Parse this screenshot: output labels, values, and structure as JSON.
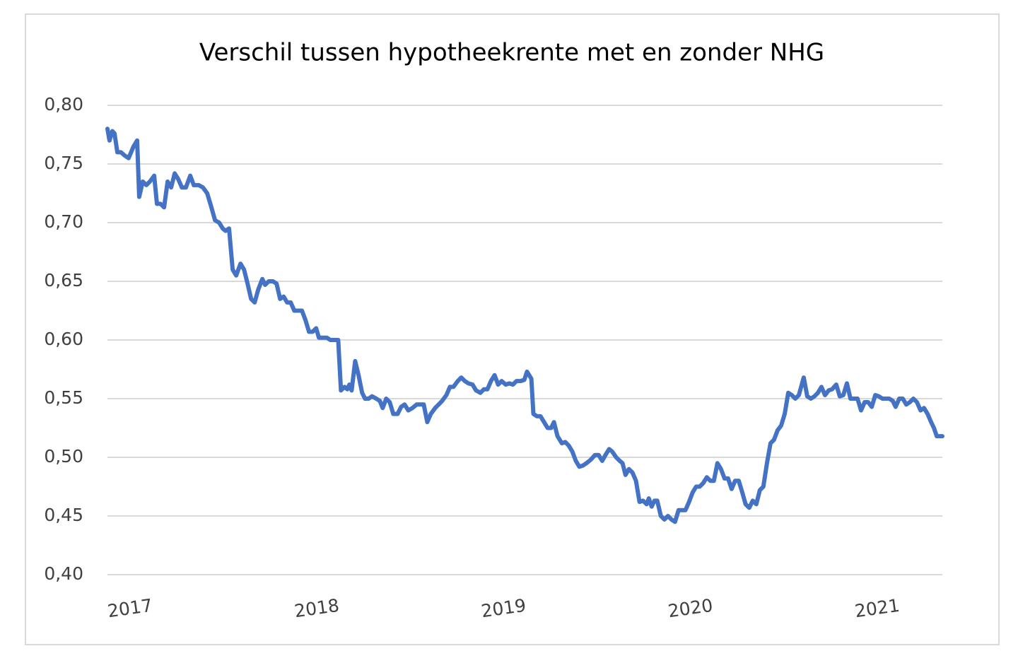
{
  "chart_data": {
    "type": "line",
    "title": "Verschil tussen hypotheekrente met en zonder NHG",
    "color": "#4472c4",
    "grid": true,
    "xlim": [
      2016.879,
      2021.348
    ],
    "xticks": [
      2017,
      2018,
      2019,
      2020,
      2021
    ],
    "ylim": [
      0.4,
      0.8
    ],
    "yticks": [
      {
        "value": 0.4,
        "label": "0,40"
      },
      {
        "value": 0.45,
        "label": "0,45"
      },
      {
        "value": 0.5,
        "label": "0,50"
      },
      {
        "value": 0.55,
        "label": "0,55"
      },
      {
        "value": 0.6,
        "label": "0,60"
      },
      {
        "value": 0.65,
        "label": "0,65"
      },
      {
        "value": 0.7,
        "label": "0,70"
      },
      {
        "value": 0.75,
        "label": "0,75"
      },
      {
        "value": 0.8,
        "label": "0,80"
      }
    ],
    "x": [
      2016.879,
      2016.89,
      2016.905,
      2016.917,
      2016.932,
      2016.951,
      2016.973,
      2016.992,
      2017.019,
      2017.038,
      2017.049,
      2017.068,
      2017.087,
      2017.106,
      2017.129,
      2017.144,
      2017.163,
      2017.182,
      2017.201,
      2017.22,
      2017.239,
      2017.258,
      2017.277,
      2017.299,
      2017.322,
      2017.341,
      2017.367,
      2017.39,
      2017.413,
      2017.432,
      2017.455,
      2017.477,
      2017.496,
      2017.511,
      2017.53,
      2017.549,
      2017.568,
      2017.591,
      2017.61,
      2017.629,
      2017.648,
      2017.667,
      2017.686,
      2017.708,
      2017.723,
      2017.742,
      2017.765,
      2017.784,
      2017.803,
      2017.822,
      2017.841,
      2017.86,
      2017.879,
      2017.902,
      2017.92,
      2017.939,
      2017.958,
      2017.977,
      2017.996,
      2018.011,
      2018.034,
      2018.053,
      2018.072,
      2018.095,
      2018.114,
      2018.129,
      2018.148,
      2018.163,
      2018.174,
      2018.186,
      2018.205,
      2018.223,
      2018.242,
      2018.258,
      2018.277,
      2018.295,
      2018.318,
      2018.337,
      2018.352,
      2018.371,
      2018.39,
      2018.409,
      2018.432,
      2018.451,
      2018.47,
      2018.489,
      2018.511,
      2018.534,
      2018.557,
      2018.572,
      2018.591,
      2018.61,
      2018.633,
      2018.652,
      2018.67,
      2018.693,
      2018.712,
      2018.731,
      2018.754,
      2018.773,
      2018.792,
      2018.811,
      2018.833,
      2018.852,
      2018.875,
      2018.894,
      2018.913,
      2018.932,
      2018.951,
      2018.97,
      2018.989,
      2019.011,
      2019.03,
      2019.049,
      2019.068,
      2019.091,
      2019.11,
      2019.125,
      2019.148,
      2019.159,
      2019.178,
      2019.197,
      2019.216,
      2019.235,
      2019.254,
      2019.269,
      2019.288,
      2019.311,
      2019.33,
      2019.348,
      2019.367,
      2019.386,
      2019.405,
      2019.424,
      2019.443,
      2019.466,
      2019.489,
      2019.508,
      2019.527,
      2019.545,
      2019.564,
      2019.58,
      2019.602,
      2019.621,
      2019.636,
      2019.652,
      2019.67,
      2019.689,
      2019.708,
      2019.727,
      2019.746,
      2019.765,
      2019.777,
      2019.792,
      2019.807,
      2019.822,
      2019.841,
      2019.86,
      2019.879,
      2019.898,
      2019.917,
      2019.936,
      2019.951,
      2019.973,
      2019.992,
      2020.011,
      2020.03,
      2020.049,
      2020.068,
      2020.087,
      2020.106,
      2020.125,
      2020.144,
      2020.163,
      2020.182,
      2020.201,
      2020.22,
      2020.239,
      2020.258,
      2020.277,
      2020.295,
      2020.314,
      2020.333,
      2020.352,
      2020.371,
      2020.39,
      2020.409,
      2020.428,
      2020.447,
      2020.466,
      2020.485,
      2020.504,
      2020.523,
      2020.542,
      2020.561,
      2020.58,
      2020.606,
      2020.625,
      2020.644,
      2020.663,
      2020.682,
      2020.701,
      2020.72,
      2020.739,
      2020.758,
      2020.78,
      2020.799,
      2020.818,
      2020.837,
      2020.856,
      2020.875,
      2020.894,
      2020.913,
      2020.932,
      2020.951,
      2020.97,
      2020.989,
      2021.008,
      2021.027,
      2021.045,
      2021.064,
      2021.083,
      2021.098,
      2021.117,
      2021.136,
      2021.155,
      2021.174,
      2021.193,
      2021.212,
      2021.231,
      2021.25,
      2021.269,
      2021.288,
      2021.303,
      2021.318,
      2021.348
    ],
    "values": [
      0.78,
      0.77,
      0.778,
      0.776,
      0.76,
      0.76,
      0.757,
      0.755,
      0.765,
      0.77,
      0.722,
      0.735,
      0.732,
      0.735,
      0.74,
      0.716,
      0.716,
      0.713,
      0.735,
      0.73,
      0.742,
      0.737,
      0.73,
      0.73,
      0.74,
      0.732,
      0.732,
      0.73,
      0.725,
      0.715,
      0.702,
      0.7,
      0.695,
      0.693,
      0.695,
      0.66,
      0.655,
      0.665,
      0.66,
      0.648,
      0.635,
      0.632,
      0.643,
      0.652,
      0.647,
      0.65,
      0.65,
      0.648,
      0.635,
      0.637,
      0.632,
      0.632,
      0.625,
      0.625,
      0.625,
      0.617,
      0.607,
      0.607,
      0.61,
      0.602,
      0.602,
      0.602,
      0.6,
      0.6,
      0.6,
      0.557,
      0.56,
      0.558,
      0.562,
      0.557,
      0.582,
      0.57,
      0.555,
      0.55,
      0.55,
      0.552,
      0.55,
      0.548,
      0.542,
      0.55,
      0.547,
      0.537,
      0.537,
      0.543,
      0.545,
      0.54,
      0.542,
      0.545,
      0.545,
      0.545,
      0.53,
      0.537,
      0.542,
      0.545,
      0.548,
      0.553,
      0.56,
      0.56,
      0.565,
      0.568,
      0.565,
      0.563,
      0.562,
      0.557,
      0.555,
      0.558,
      0.558,
      0.565,
      0.57,
      0.562,
      0.565,
      0.562,
      0.563,
      0.562,
      0.565,
      0.565,
      0.566,
      0.573,
      0.567,
      0.537,
      0.535,
      0.535,
      0.53,
      0.525,
      0.525,
      0.53,
      0.518,
      0.512,
      0.513,
      0.51,
      0.505,
      0.497,
      0.492,
      0.493,
      0.495,
      0.498,
      0.502,
      0.502,
      0.497,
      0.502,
      0.507,
      0.505,
      0.5,
      0.497,
      0.495,
      0.485,
      0.49,
      0.487,
      0.48,
      0.462,
      0.463,
      0.46,
      0.465,
      0.458,
      0.463,
      0.463,
      0.45,
      0.447,
      0.45,
      0.447,
      0.445,
      0.455,
      0.455,
      0.455,
      0.462,
      0.47,
      0.475,
      0.475,
      0.478,
      0.483,
      0.48,
      0.48,
      0.495,
      0.49,
      0.482,
      0.482,
      0.473,
      0.48,
      0.48,
      0.47,
      0.46,
      0.457,
      0.463,
      0.46,
      0.472,
      0.475,
      0.495,
      0.512,
      0.515,
      0.523,
      0.527,
      0.537,
      0.555,
      0.553,
      0.55,
      0.553,
      0.568,
      0.552,
      0.55,
      0.552,
      0.555,
      0.56,
      0.553,
      0.557,
      0.558,
      0.562,
      0.552,
      0.553,
      0.563,
      0.55,
      0.55,
      0.55,
      0.54,
      0.547,
      0.547,
      0.543,
      0.553,
      0.552,
      0.55,
      0.55,
      0.55,
      0.548,
      0.543,
      0.55,
      0.55,
      0.545,
      0.547,
      0.55,
      0.547,
      0.54,
      0.542,
      0.537,
      0.53,
      0.525,
      0.518,
      0.518
    ]
  }
}
